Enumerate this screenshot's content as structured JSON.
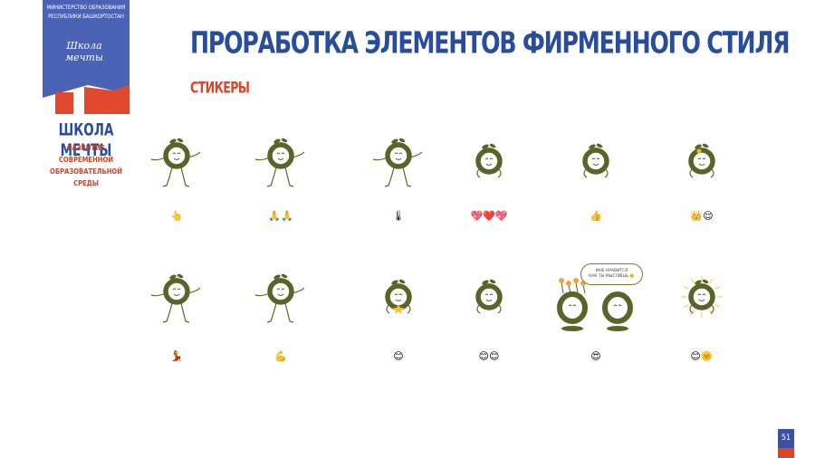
{
  "logo": {
    "caption_lines": [
      "МИНИСТЕРСТВО ОБРАЗОВАНИЯ",
      "РЕСПУБЛИКИ БАШКОРТОСТАН"
    ],
    "script_text": "Школа мечты",
    "title": "ШКОЛА МЕЧТЫ",
    "subtitle_lines": [
      "РАЗВИТИЕ СОВРЕМЕННОЙ",
      "ОБРАЗОВАТЕЛЬНОЙ СРЕДЫ"
    ]
  },
  "header": {
    "title": "ПРОРАБОТКА ЭЛЕМЕНТОВ ФИРМЕННОГО СТИЛЯ",
    "section": "СТИКЕРЫ"
  },
  "stickers": [
    {
      "pose": "waving",
      "emoji": "👆"
    },
    {
      "pose": "dancing",
      "emoji": "🙏🙏"
    },
    {
      "pose": "standing",
      "emoji": "🌡"
    },
    {
      "pose": "smiling",
      "emoji": "💖❤️💖"
    },
    {
      "pose": "thumbs-up",
      "emoji": "👍"
    },
    {
      "pose": "crowned",
      "emoji": "👑😌"
    },
    {
      "pose": "dancing-arms-up",
      "emoji": "💃"
    },
    {
      "pose": "flexing",
      "emoji": "💪"
    },
    {
      "pose": "star-hug",
      "emoji": "😊"
    },
    {
      "pose": "happy",
      "emoji": "😊😊"
    },
    {
      "pose": "pair-with-flowers",
      "emoji": "😍"
    },
    {
      "pose": "sunny",
      "emoji": "😊🌞"
    }
  ],
  "speech_bubble": {
    "lines": [
      "МНЕ НРАВИТСЯ",
      "КАК ТЫ МЫСЛИШЬ 🌞"
    ]
  },
  "page_number": "51",
  "colors": {
    "brand_blue": "#2a4d9b",
    "accent_red": "#d9472b",
    "mascot_olive": "#5a6428",
    "logo_panel": "#4a63b5"
  }
}
